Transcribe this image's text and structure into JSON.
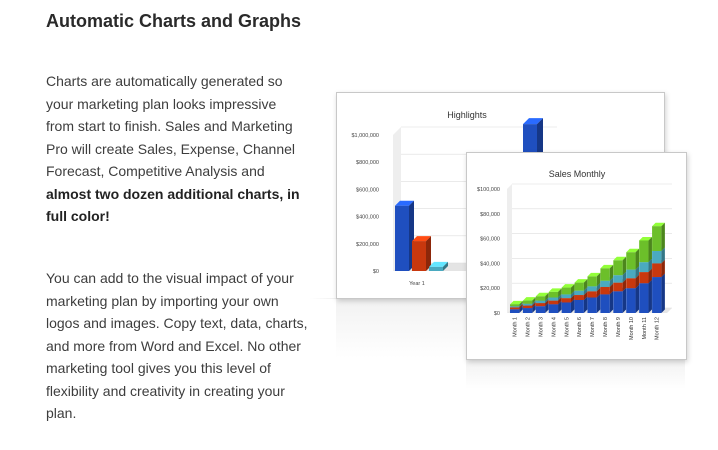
{
  "heading": "Automatic Charts and Graphs",
  "paragraph1": {
    "text": "Charts are automatically generated so your marketing plan looks impressive from start to finish. Sales and Marketing Pro will create Sales, Expense, Channel Forecast, Competitive Analysis and ",
    "bold": "almost two dozen additional charts, in full color!"
  },
  "paragraph2": "You can add to the visual impact of your marketing plan by importing your own logos and images. Copy text, data, charts, and more from Word and Excel. No other marketing tool gives you this level of flexibility and creativity in creating your plan.",
  "colors": {
    "blue": "#1f4fbf",
    "red": "#c8380e",
    "teal": "#4aaac0",
    "green": "#6cbf2a"
  },
  "chart_data": [
    {
      "type": "bar",
      "title": "Highlights",
      "categories": [
        "Year 1"
      ],
      "yticks": [
        "$0",
        "$200,000",
        "$400,000",
        "$600,000",
        "$800,000",
        "$1,000,000"
      ],
      "ylim": [
        0,
        1000000
      ],
      "series": [
        {
          "values": [
            480000
          ]
        },
        {
          "values": [
            220000
          ]
        },
        {
          "values": [
            30000
          ]
        }
      ],
      "partial_bar_value": 1100000
    },
    {
      "type": "bar",
      "title": "Sales Monthly",
      "categories": [
        "Month 1",
        "Month 2",
        "Month 3",
        "Month 4",
        "Month 5",
        "Month 6",
        "Month 7",
        "Month 8",
        "Month 9",
        "Month 10",
        "Month 11",
        "Month 12"
      ],
      "yticks": [
        "$0",
        "$20,000",
        "$40,000",
        "$60,000",
        "$80,000",
        "$100,000"
      ],
      "ylim": [
        0,
        100000
      ],
      "stacked": true,
      "series": [
        {
          "values": [
            3000,
            4000,
            5500,
            7000,
            8500,
            10500,
            12500,
            15000,
            17500,
            20000,
            24000,
            29000
          ]
        },
        {
          "values": [
            1500,
            2000,
            2500,
            3000,
            3500,
            4000,
            5000,
            6000,
            7000,
            8000,
            9000,
            11000
          ]
        },
        {
          "values": [
            1000,
            1500,
            2000,
            2500,
            3000,
            3500,
            4000,
            5000,
            6000,
            7000,
            8000,
            10000
          ]
        },
        {
          "values": [
            1500,
            2500,
            3500,
            4500,
            5500,
            6500,
            8000,
            10000,
            12000,
            14000,
            17500,
            20000
          ]
        }
      ]
    }
  ]
}
